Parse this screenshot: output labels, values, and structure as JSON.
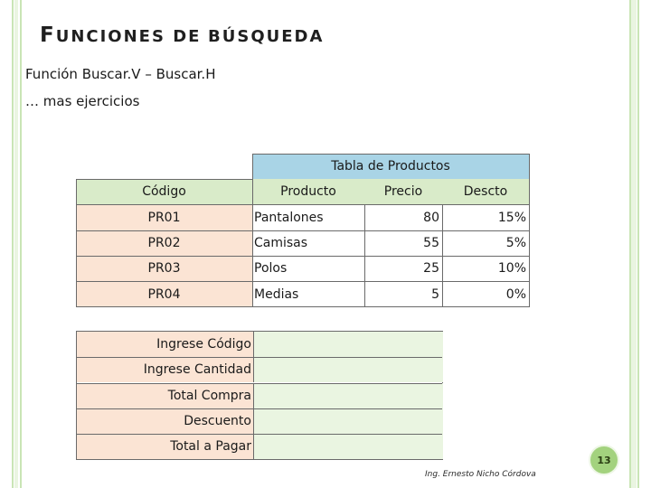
{
  "slide": {
    "title_first_letter": "F",
    "title_rest_1": "UNCIONES DE",
    "title_rest_2": "BÚSQUEDA",
    "subtitle_1": "Función Buscar.V – Buscar.H",
    "subtitle_2": "… mas ejercicios",
    "page_number": "13",
    "author": "Ing. Ernesto Nicho Córdova"
  },
  "products_table": {
    "caption": "Tabla de Productos",
    "headers": [
      "Código",
      "Producto",
      "Precio",
      "Descto"
    ],
    "rows": [
      [
        "PR01",
        "Pantalones",
        "80",
        "15%"
      ],
      [
        "PR02",
        "Camisas",
        "55",
        "5%"
      ],
      [
        "PR03",
        "Polos",
        "25",
        "10%"
      ],
      [
        "PR04",
        "Medias",
        "5",
        "0%"
      ]
    ]
  },
  "form": {
    "fields": [
      {
        "label": "Ingrese Código",
        "value": ""
      },
      {
        "label": "Ingrese Cantidad",
        "value": ""
      },
      {
        "label": "Total Compra",
        "value": ""
      },
      {
        "label": "Descuento",
        "value": ""
      },
      {
        "label": "Total a Pagar",
        "value": ""
      }
    ]
  },
  "colors": {
    "header_green": "#d9ebc9",
    "header_blue": "#a9d4e6",
    "body_pink": "#fbe4d4",
    "input_green": "#eaf5e1",
    "page_badge": "#a3d27e"
  }
}
